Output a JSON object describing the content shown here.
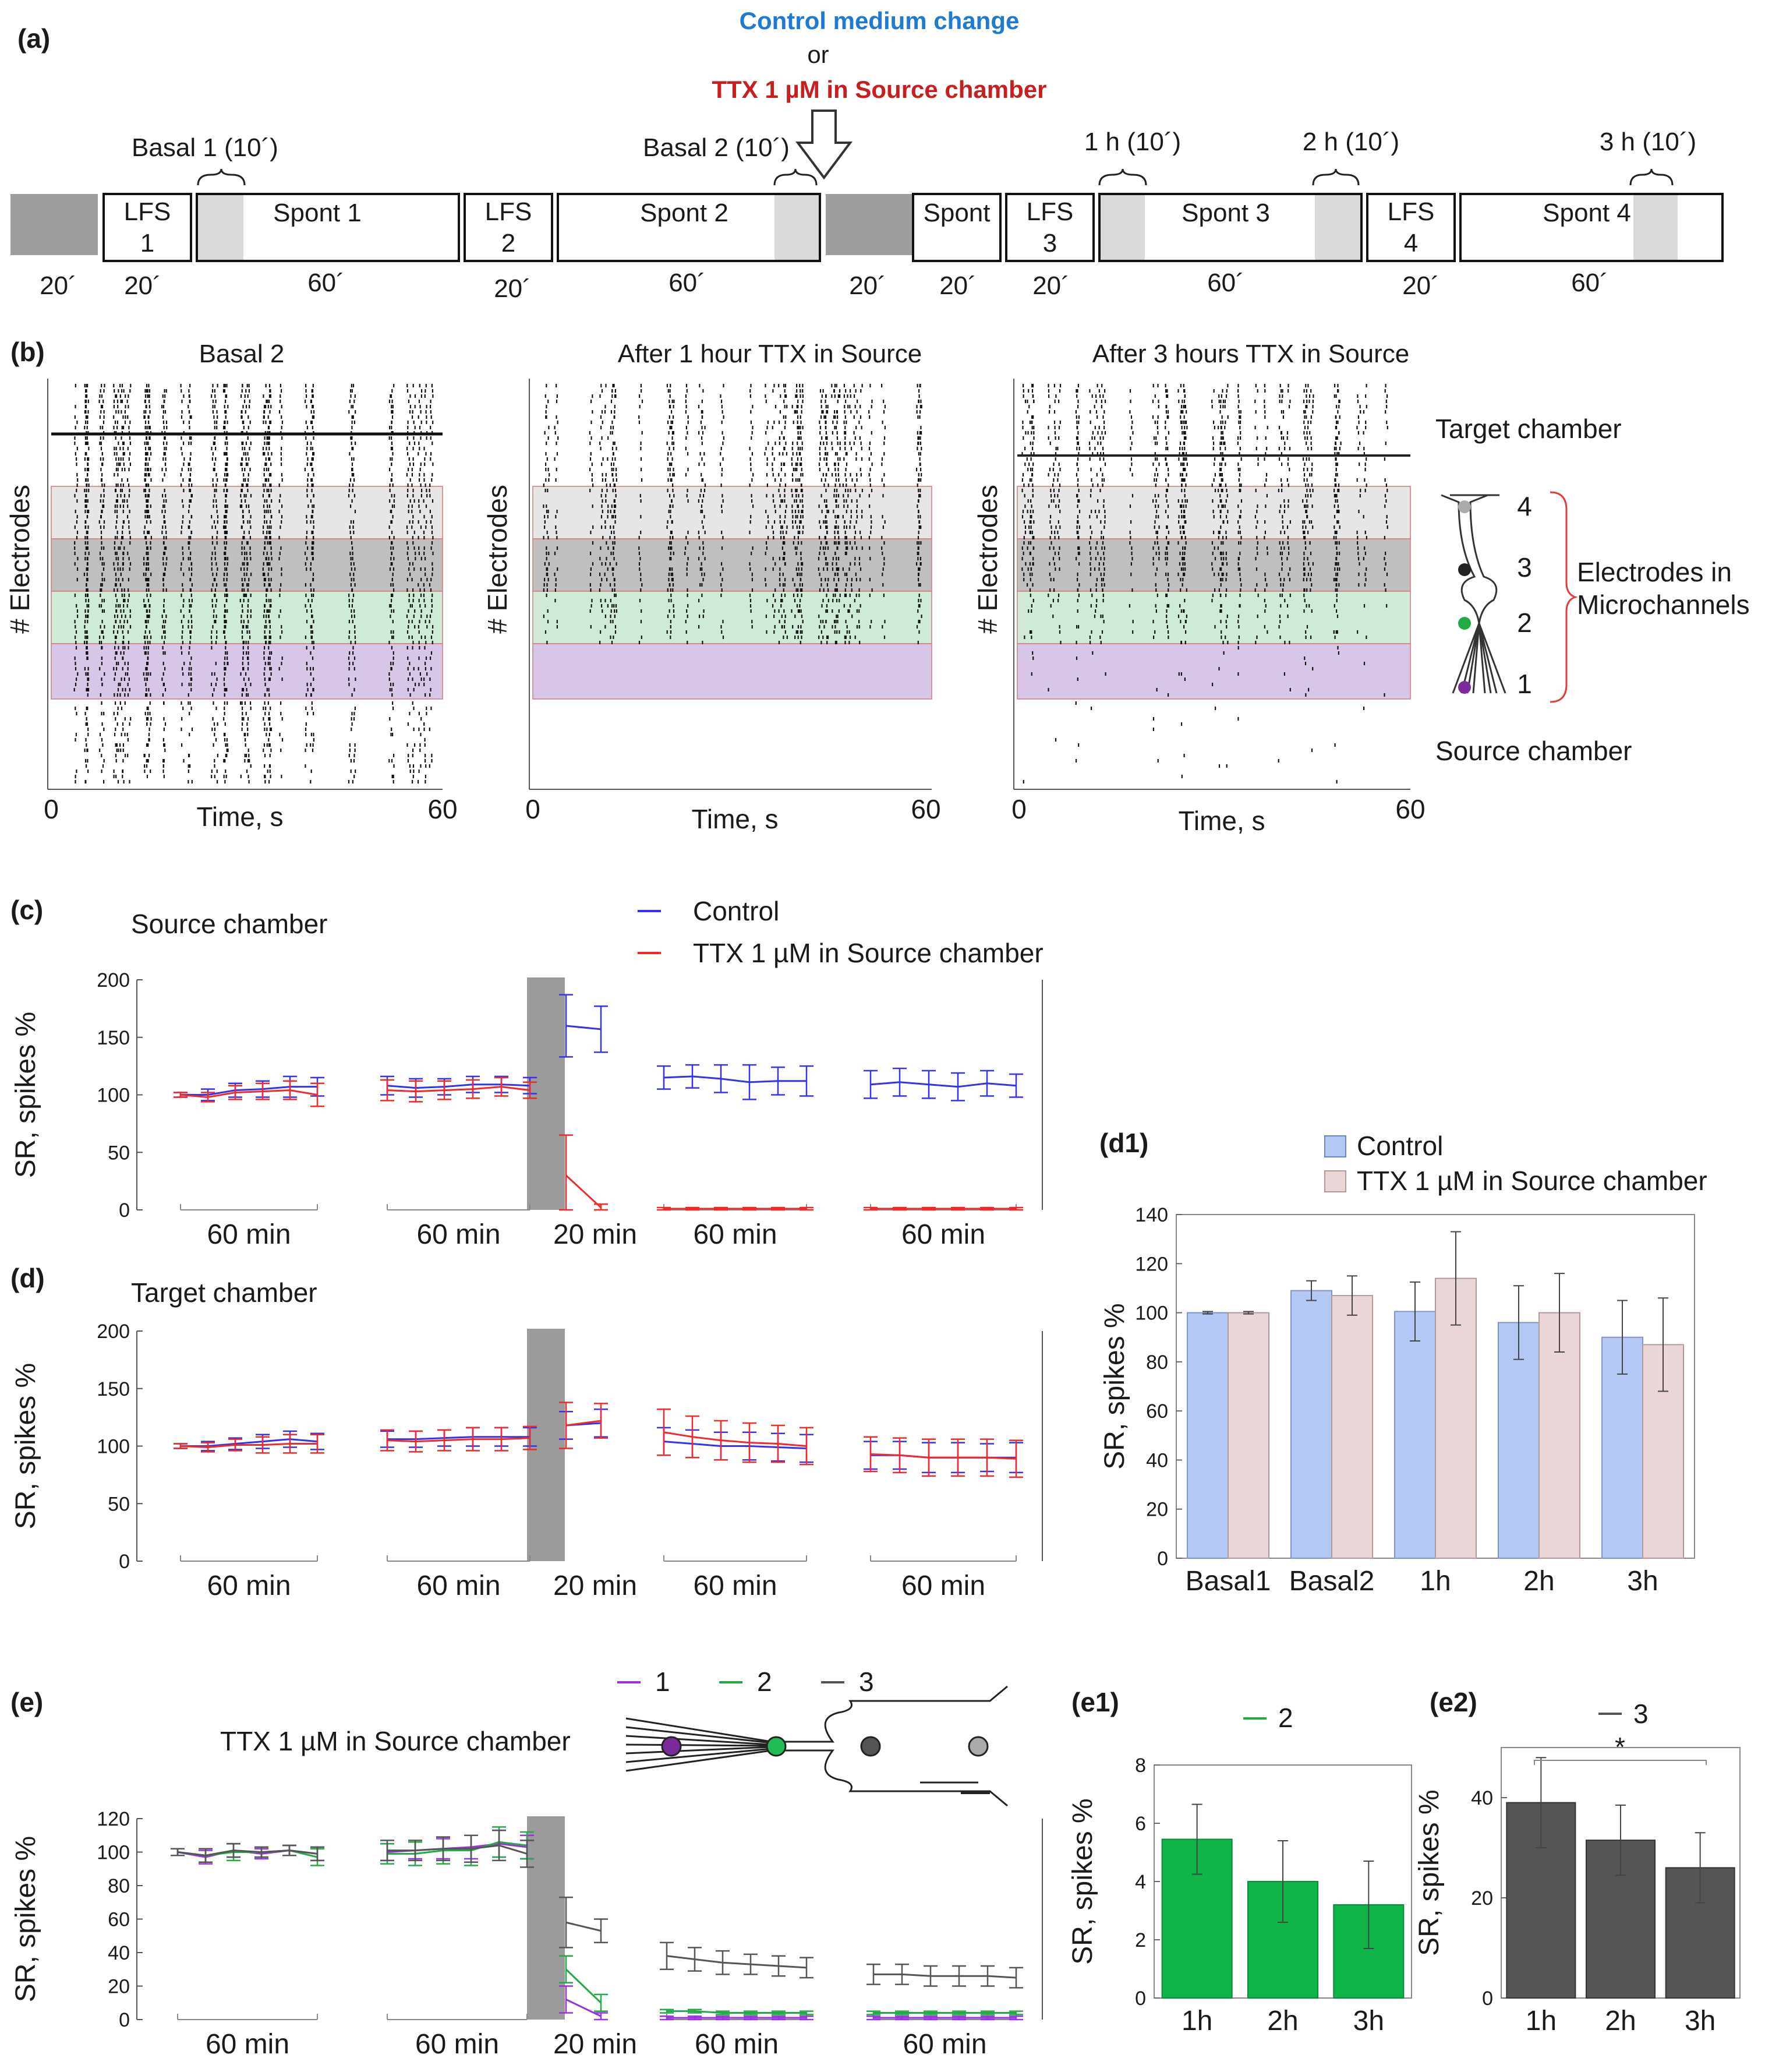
{
  "panels": {
    "a": "(a)",
    "b": "(b)",
    "c": "(c)",
    "d": "(d)",
    "d1": "(d1)",
    "e": "(e)",
    "e1": "(e1)",
    "e2": "(e2)"
  },
  "timeline": {
    "header_control": "Control medium change",
    "header_or": "or",
    "header_ttx": "TTX 1 µM in Source chamber",
    "window_labels": [
      "Basal 1 (10´)",
      "Basal 2 (10´)",
      "1 h (10´)",
      "2 h (10´)",
      "3 h (10´)"
    ],
    "segments": [
      {
        "label1": "",
        "label2": "",
        "duration": "20´"
      },
      {
        "label1": "LFS",
        "label2": "1",
        "duration": "20´"
      },
      {
        "label1": "Spont 1",
        "label2": "",
        "duration": "60´"
      },
      {
        "label1": "LFS",
        "label2": "2",
        "duration": "20´"
      },
      {
        "label1": "Spont 2",
        "label2": "",
        "duration": "60´"
      },
      {
        "label1": "",
        "label2": "",
        "duration": "20´"
      },
      {
        "label1": "Spont",
        "label2": "",
        "duration": "20´"
      },
      {
        "label1": "LFS",
        "label2": "3",
        "duration": "20´"
      },
      {
        "label1": "Spont 3",
        "label2": "",
        "duration": "60´"
      },
      {
        "label1": "LFS",
        "label2": "4",
        "duration": "20´"
      },
      {
        "label1": "Spont 4",
        "label2": "",
        "duration": "60´"
      }
    ]
  },
  "rasters": {
    "titles": [
      "Basal 2",
      "After 1 hour TTX in Source",
      "After 3 hours TTX in Source"
    ],
    "ylabel": "# Electrodes",
    "xlabel": "Time, s",
    "xmin": "0",
    "xmax": "60",
    "target_label": "Target chamber",
    "source_label": "Source chamber",
    "electrodes_label_1": "Electrodes in",
    "electrodes_label_2": "Microchannels",
    "channel_numbers": [
      "4",
      "3",
      "2",
      "1"
    ]
  },
  "legend_c": {
    "control": "Control",
    "ttx": "TTX 1 µM in Source chamber"
  },
  "legend_d1": {
    "control": "Control",
    "ttx": "TTX 1 µM in Source chamber"
  },
  "legend_e": {
    "s1": "1",
    "s2": "2",
    "s3": "3",
    "title": "TTX 1 µM in Source chamber"
  },
  "legend_e1": "2",
  "legend_e2": "3",
  "sig_star": "*",
  "colors": {
    "control": "#3333ee",
    "ttx": "#ee2a2a",
    "ch1": "#9933dd",
    "ch2": "#22aa44",
    "ch3": "#555555",
    "bar_control": "#b4c8f5",
    "bar_ttx": "#ead6d6",
    "bar_green": "#10b54a",
    "bar_dark": "#555555",
    "band_light": "#e6e6e6",
    "band_dark": "#bfbfbf",
    "band_green": "#cdebd6",
    "band_purple": "#d8c6e8"
  },
  "chart_data": [
    {
      "id": "c",
      "type": "line",
      "title": "Source chamber",
      "ylabel": "SR, spikes  %",
      "ylim": [
        0,
        200
      ],
      "yticks": [
        "0",
        "50",
        "100",
        "150",
        "200"
      ],
      "group_labels": [
        "60 min",
        "60 min",
        "20 min",
        "60 min",
        "60 min"
      ],
      "series": [
        {
          "name": "Control",
          "groups": [
            {
              "y": [
                100,
                100,
                104,
                105,
                107,
                107
              ],
              "err": [
                2,
                5,
                6,
                7,
                9,
                8
              ]
            },
            {
              "y": [
                108,
                106,
                107,
                109,
                109,
                108
              ],
              "err": [
                8,
                8,
                7,
                7,
                7,
                7
              ]
            },
            {
              "y": [
                160,
                157
              ],
              "err": [
                27,
                20
              ]
            },
            {
              "y": [
                115,
                116,
                114,
                111,
                112,
                112
              ],
              "err": [
                10,
                10,
                12,
                15,
                12,
                13
              ]
            },
            {
              "y": [
                109,
                111,
                109,
                107,
                110,
                108
              ],
              "err": [
                12,
                12,
                12,
                12,
                11,
                10
              ]
            }
          ]
        },
        {
          "name": "TTX 1 µM in Source chamber",
          "groups": [
            {
              "y": [
                100,
                98,
                102,
                103,
                104,
                100
              ],
              "err": [
                2,
                4,
                6,
                7,
                8,
                10
              ]
            },
            {
              "y": [
                104,
                103,
                104,
                105,
                107,
                104
              ],
              "err": [
                9,
                9,
                8,
                8,
                8,
                7
              ]
            },
            {
              "y": [
                30,
                2
              ],
              "err": [
                35,
                3
              ]
            },
            {
              "y": [
                1,
                1,
                1,
                1,
                1,
                1
              ],
              "err": [
                1,
                1,
                1,
                1,
                1,
                1
              ]
            },
            {
              "y": [
                1,
                1,
                1,
                1,
                1,
                1
              ],
              "err": [
                1,
                1,
                1,
                1,
                1,
                1
              ]
            }
          ]
        }
      ]
    },
    {
      "id": "d",
      "type": "line",
      "title": "Target chamber",
      "ylabel": "SR, spikes  %",
      "ylim": [
        0,
        200
      ],
      "yticks": [
        "0",
        "50",
        "100",
        "150",
        "200"
      ],
      "group_labels": [
        "60 min",
        "60 min",
        "20 min",
        "60 min",
        "60 min"
      ],
      "series": [
        {
          "name": "Control",
          "groups": [
            {
              "y": [
                100,
                100,
                102,
                104,
                106,
                104
              ],
              "err": [
                2,
                4,
                5,
                6,
                7,
                7
              ]
            },
            {
              "y": [
                106,
                106,
                107,
                108,
                108,
                108
              ],
              "err": [
                7,
                7,
                7,
                8,
                8,
                8
              ]
            },
            {
              "y": [
                118,
                120
              ],
              "err": [
                12,
                12
              ]
            },
            {
              "y": [
                104,
                102,
                100,
                100,
                99,
                98
              ],
              "err": [
                12,
                12,
                12,
                12,
                12,
                12
              ]
            },
            {
              "y": [
                92,
                92,
                90,
                90,
                90,
                90
              ],
              "err": [
                12,
                12,
                13,
                13,
                12,
                13
              ]
            }
          ]
        },
        {
          "name": "TTX 1 µM in Source chamber",
          "groups": [
            {
              "y": [
                100,
                99,
                101,
                101,
                102,
                102
              ],
              "err": [
                2,
                4,
                5,
                7,
                8,
                8
              ]
            },
            {
              "y": [
                105,
                104,
                105,
                106,
                106,
                107
              ],
              "err": [
                9,
                9,
                9,
                10,
                10,
                10
              ]
            },
            {
              "y": [
                118,
                122
              ],
              "err": [
                20,
                15
              ]
            },
            {
              "y": [
                112,
                108,
                105,
                103,
                102,
                100
              ],
              "err": [
                20,
                18,
                17,
                17,
                16,
                16
              ]
            },
            {
              "y": [
                93,
                92,
                90,
                90,
                90,
                89
              ],
              "err": [
                15,
                15,
                16,
                16,
                16,
                16
              ]
            }
          ]
        }
      ]
    },
    {
      "id": "d1",
      "type": "bar",
      "ylabel": "SR, spikes  %",
      "categories": [
        "Basal1",
        "Basal2",
        "1h",
        "2h",
        "3h"
      ],
      "ylim": [
        0,
        140
      ],
      "yticks": [
        "0",
        "20",
        "40",
        "60",
        "80",
        "100",
        "120",
        "140"
      ],
      "series": [
        {
          "name": "Control",
          "values": [
            100,
            109,
            100.5,
            96,
            90
          ],
          "err": [
            0.5,
            4,
            12,
            15,
            15
          ]
        },
        {
          "name": "TTX 1 µM in Source chamber",
          "values": [
            100,
            107,
            114,
            100,
            87
          ],
          "err": [
            0.5,
            8,
            19,
            16,
            19
          ]
        }
      ]
    },
    {
      "id": "e",
      "type": "line",
      "title": "TTX 1 µM in Source chamber",
      "ylabel": "SR, spikes  %",
      "ylim": [
        0,
        120
      ],
      "yticks": [
        "0",
        "20",
        "40",
        "60",
        "80",
        "100",
        "120"
      ],
      "group_labels": [
        "60 min",
        "60 min",
        "20 min",
        "60 min",
        "60 min"
      ],
      "series": [
        {
          "name": "1",
          "groups": [
            {
              "y": [
                100,
                97,
                101,
                99,
                101,
                99
              ],
              "err": [
                2,
                4,
                4,
                3,
                3,
                4
              ]
            },
            {
              "y": [
                100,
                101,
                102,
                103,
                105,
                103
              ],
              "err": [
                5,
                5,
                6,
                7,
                8,
                7
              ]
            },
            {
              "y": [
                12,
                2
              ],
              "err": [
                8,
                2
              ]
            },
            {
              "y": [
                1,
                1,
                1,
                1,
                1,
                1
              ],
              "err": [
                1,
                1,
                1,
                1,
                1,
                1
              ]
            },
            {
              "y": [
                1,
                1,
                1,
                1,
                1,
                1
              ],
              "err": [
                1,
                1,
                1,
                1,
                1,
                1
              ]
            }
          ]
        },
        {
          "name": "2",
          "groups": [
            {
              "y": [
                100,
                98,
                100,
                100,
                101,
                97
              ],
              "err": [
                2,
                4,
                5,
                3,
                3,
                5
              ]
            },
            {
              "y": [
                99,
                99,
                101,
                101,
                106,
                104
              ],
              "err": [
                6,
                7,
                8,
                9,
                9,
                8
              ]
            },
            {
              "y": [
                30,
                10
              ],
              "err": [
                8,
                5
              ]
            },
            {
              "y": [
                5,
                5,
                4,
                4,
                4,
                4
              ],
              "err": [
                1,
                1,
                1,
                1,
                1,
                1
              ]
            },
            {
              "y": [
                4,
                4,
                4,
                4,
                4,
                4
              ],
              "err": [
                1,
                1,
                1,
                1,
                1,
                1
              ]
            }
          ]
        },
        {
          "name": "3",
          "groups": [
            {
              "y": [
                100,
                98,
                101,
                100,
                101,
                99
              ],
              "err": [
                2,
                4,
                4,
                3,
                3,
                4
              ]
            },
            {
              "y": [
                101,
                101,
                102,
                102,
                104,
                99
              ],
              "err": [
                6,
                6,
                7,
                8,
                9,
                8
              ]
            },
            {
              "y": [
                58,
                53
              ],
              "err": [
                15,
                7
              ]
            },
            {
              "y": [
                38,
                36,
                34,
                33,
                32,
                31
              ],
              "err": [
                8,
                7,
                7,
                6,
                6,
                6
              ]
            },
            {
              "y": [
                27,
                27,
                26,
                26,
                26,
                25
              ],
              "err": [
                6,
                6,
                6,
                6,
                6,
                6
              ]
            }
          ]
        }
      ]
    },
    {
      "id": "e1",
      "type": "bar",
      "ylabel": "SR, spikes  %",
      "categories": [
        "1h",
        "2h",
        "3h"
      ],
      "ylim": [
        0,
        8
      ],
      "yticks": [
        "0",
        "2",
        "4",
        "6",
        "8"
      ],
      "series": [
        {
          "name": "2",
          "values": [
            5.45,
            4.0,
            3.2
          ],
          "err": [
            1.2,
            1.4,
            1.5
          ]
        }
      ]
    },
    {
      "id": "e2",
      "type": "bar",
      "ylabel": "SR, spikes  %",
      "categories": [
        "1h",
        "2h",
        "3h"
      ],
      "ylim": [
        0,
        50
      ],
      "yticks": [
        "0",
        "20",
        "40"
      ],
      "series": [
        {
          "name": "3",
          "values": [
            39,
            31.5,
            26
          ],
          "err": [
            9,
            7,
            7
          ]
        }
      ]
    }
  ]
}
